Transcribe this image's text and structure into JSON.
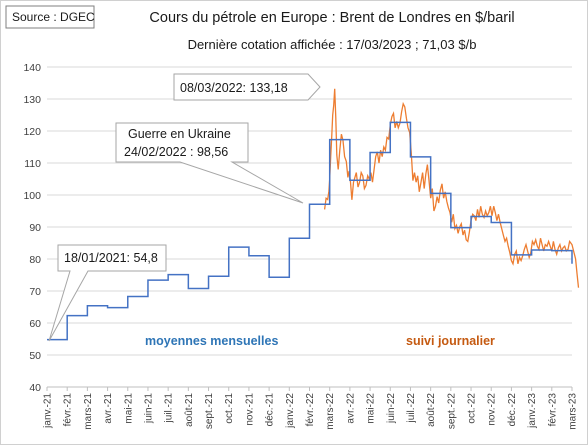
{
  "chart_data": {
    "type": "line",
    "source": "Source : DGEC",
    "title": "Cours du pétrole en Europe : Brent de Londres en $/baril",
    "subtitle": "Dernière cotation affichée : 17/03/2023 ; 71,03 $/b",
    "ylim": [
      40,
      140
    ],
    "yticks": [
      40,
      50,
      60,
      70,
      80,
      90,
      100,
      110,
      120,
      130,
      140
    ],
    "x_categories": [
      "janv.-21",
      "févr.-21",
      "mars-21",
      "avr.-21",
      "mai-21",
      "juin-21",
      "juil.-21",
      "août-21",
      "sept.-21",
      "oct.-21",
      "nov.-21",
      "déc.-21",
      "janv.-22",
      "févr.-22",
      "mars-22",
      "avr.-22",
      "mai-22",
      "juin-22",
      "juil.-22",
      "août-22",
      "sept.-22",
      "oct.-22",
      "nov.-22",
      "déc.-22",
      "janv.-23",
      "févr.-23",
      "mars-23"
    ],
    "annotations": [
      {
        "name": "callout-jan-2021",
        "text": "18/01/2021: 54,8"
      },
      {
        "name": "callout-ukraine-line1",
        "text": "Guerre en Ukraine"
      },
      {
        "name": "callout-ukraine-line2",
        "text": "24/02/2022 : 98,56"
      },
      {
        "name": "callout-march-2022",
        "text": "08/03/2022: 133,18"
      }
    ],
    "series": [
      {
        "name": "moyennes mensuelles",
        "color": "#4472c4",
        "values": [
          54.8,
          62.3,
          65.4,
          64.8,
          68.3,
          73.4,
          75.1,
          70.8,
          74.6,
          83.7,
          81.0,
          74.3,
          86.5,
          97.1,
          117.3,
          104.6,
          113.3,
          122.7,
          111.9,
          100.5,
          89.8,
          93.3,
          91.4,
          81.3,
          82.8,
          82.6,
          78.5
        ]
      },
      {
        "name": "suivi journalier",
        "color": "#ed7d31",
        "points": [
          [
            13.75,
            95.5
          ],
          [
            13.82,
            99.0
          ],
          [
            13.9,
            98.6
          ],
          [
            13.96,
            101.2
          ],
          [
            14.0,
            105.0
          ],
          [
            14.05,
            112.0
          ],
          [
            14.1,
            118.0
          ],
          [
            14.15,
            125.0
          ],
          [
            14.2,
            128.0
          ],
          [
            14.25,
            133.18
          ],
          [
            14.3,
            124.0
          ],
          [
            14.35,
            112.5
          ],
          [
            14.42,
            108.0
          ],
          [
            14.5,
            114.0
          ],
          [
            14.58,
            119.0
          ],
          [
            14.66,
            117.0
          ],
          [
            14.74,
            112.0
          ],
          [
            14.82,
            110.5
          ],
          [
            14.9,
            105.5
          ],
          [
            14.96,
            107.5
          ],
          [
            15.03,
            104.0
          ],
          [
            15.1,
            98.5
          ],
          [
            15.18,
            104.0
          ],
          [
            15.25,
            105.5
          ],
          [
            15.32,
            107.0
          ],
          [
            15.4,
            102.5
          ],
          [
            15.48,
            104.0
          ],
          [
            15.56,
            107.0
          ],
          [
            15.64,
            106.0
          ],
          [
            15.72,
            102.0
          ],
          [
            15.8,
            103.0
          ],
          [
            15.88,
            106.0
          ],
          [
            15.96,
            105.0
          ],
          [
            16.04,
            107.0
          ],
          [
            16.12,
            104.0
          ],
          [
            16.2,
            108.0
          ],
          [
            16.28,
            112.0
          ],
          [
            16.36,
            113.5
          ],
          [
            16.44,
            110.0
          ],
          [
            16.52,
            114.0
          ],
          [
            16.6,
            112.0
          ],
          [
            16.68,
            115.0
          ],
          [
            16.76,
            114.0
          ],
          [
            16.84,
            118.0
          ],
          [
            16.92,
            117.5
          ],
          [
            17.0,
            122.0
          ],
          [
            17.08,
            124.5
          ],
          [
            17.16,
            125.5
          ],
          [
            17.24,
            121.0
          ],
          [
            17.32,
            123.0
          ],
          [
            17.4,
            121.0
          ],
          [
            17.48,
            122.5
          ],
          [
            17.56,
            126.0
          ],
          [
            17.64,
            128.5
          ],
          [
            17.72,
            127.5
          ],
          [
            17.8,
            124.0
          ],
          [
            17.88,
            121.0
          ],
          [
            17.96,
            119.5
          ],
          [
            18.04,
            113.0
          ],
          [
            18.12,
            104.5
          ],
          [
            18.2,
            107.0
          ],
          [
            18.28,
            104.0
          ],
          [
            18.36,
            106.0
          ],
          [
            18.44,
            101.0
          ],
          [
            18.52,
            104.0
          ],
          [
            18.6,
            107.0
          ],
          [
            18.68,
            102.0
          ],
          [
            18.76,
            106.5
          ],
          [
            18.84,
            109.5
          ],
          [
            18.92,
            104.5
          ],
          [
            19.0,
            99.0
          ],
          [
            19.08,
            102.0
          ],
          [
            19.16,
            95.0
          ],
          [
            19.24,
            96.5
          ],
          [
            19.32,
            99.5
          ],
          [
            19.4,
            97.5
          ],
          [
            19.48,
            101.5
          ],
          [
            19.56,
            103.5
          ],
          [
            19.64,
            99.0
          ],
          [
            19.72,
            101.0
          ],
          [
            19.8,
            98.0
          ],
          [
            19.88,
            96.0
          ],
          [
            19.96,
            94.5
          ],
          [
            20.04,
            91.5
          ],
          [
            20.12,
            94.0
          ],
          [
            20.2,
            89.5
          ],
          [
            20.28,
            90.5
          ],
          [
            20.36,
            88.0
          ],
          [
            20.44,
            90.0
          ],
          [
            20.52,
            91.0
          ],
          [
            20.6,
            87.5
          ],
          [
            20.68,
            89.0
          ],
          [
            20.76,
            86.0
          ],
          [
            20.84,
            85.5
          ],
          [
            20.92,
            88.5
          ],
          [
            21.0,
            92.0
          ],
          [
            21.08,
            94.0
          ],
          [
            21.16,
            93.5
          ],
          [
            21.24,
            92.0
          ],
          [
            21.32,
            95.5
          ],
          [
            21.4,
            93.0
          ],
          [
            21.48,
            96.5
          ],
          [
            21.56,
            94.0
          ],
          [
            21.64,
            93.0
          ],
          [
            21.72,
            95.0
          ],
          [
            21.8,
            93.5
          ],
          [
            21.88,
            94.5
          ],
          [
            21.96,
            96.5
          ],
          [
            22.04,
            93.5
          ],
          [
            22.12,
            96.5
          ],
          [
            22.2,
            94.5
          ],
          [
            22.28,
            92.0
          ],
          [
            22.36,
            94.0
          ],
          [
            22.44,
            91.5
          ],
          [
            22.52,
            89.5
          ],
          [
            22.6,
            87.5
          ],
          [
            22.68,
            85.5
          ],
          [
            22.76,
            86.5
          ],
          [
            22.84,
            84.0
          ],
          [
            22.92,
            82.0
          ],
          [
            23.0,
            79.5
          ],
          [
            23.08,
            78.5
          ],
          [
            23.16,
            81.5
          ],
          [
            23.24,
            82.5
          ],
          [
            23.32,
            78.5
          ],
          [
            23.4,
            80.5
          ],
          [
            23.48,
            79.5
          ],
          [
            23.56,
            81.0
          ],
          [
            23.64,
            83.0
          ],
          [
            23.72,
            84.5
          ],
          [
            23.8,
            82.5
          ],
          [
            23.88,
            80.5
          ],
          [
            23.96,
            82.0
          ],
          [
            24.04,
            85.5
          ],
          [
            24.12,
            84.5
          ],
          [
            24.2,
            86.0
          ],
          [
            24.28,
            84.0
          ],
          [
            24.36,
            83.0
          ],
          [
            24.44,
            86.5
          ],
          [
            24.52,
            84.5
          ],
          [
            24.6,
            82.5
          ],
          [
            24.68,
            84.5
          ],
          [
            24.76,
            84.0
          ],
          [
            24.84,
            85.5
          ],
          [
            24.92,
            84.0
          ],
          [
            25.0,
            82.5
          ],
          [
            25.08,
            85.5
          ],
          [
            25.16,
            83.0
          ],
          [
            25.24,
            81.5
          ],
          [
            25.32,
            83.5
          ],
          [
            25.4,
            84.5
          ],
          [
            25.48,
            82.5
          ],
          [
            25.56,
            83.5
          ],
          [
            25.64,
            84.0
          ],
          [
            25.72,
            82.5
          ],
          [
            25.8,
            83.0
          ],
          [
            25.88,
            85.5
          ],
          [
            25.94,
            85.0
          ],
          [
            26.0,
            84.5
          ],
          [
            26.1,
            82.0
          ],
          [
            26.18,
            80.0
          ],
          [
            26.25,
            75.5
          ],
          [
            26.32,
            71.03
          ]
        ]
      }
    ]
  }
}
